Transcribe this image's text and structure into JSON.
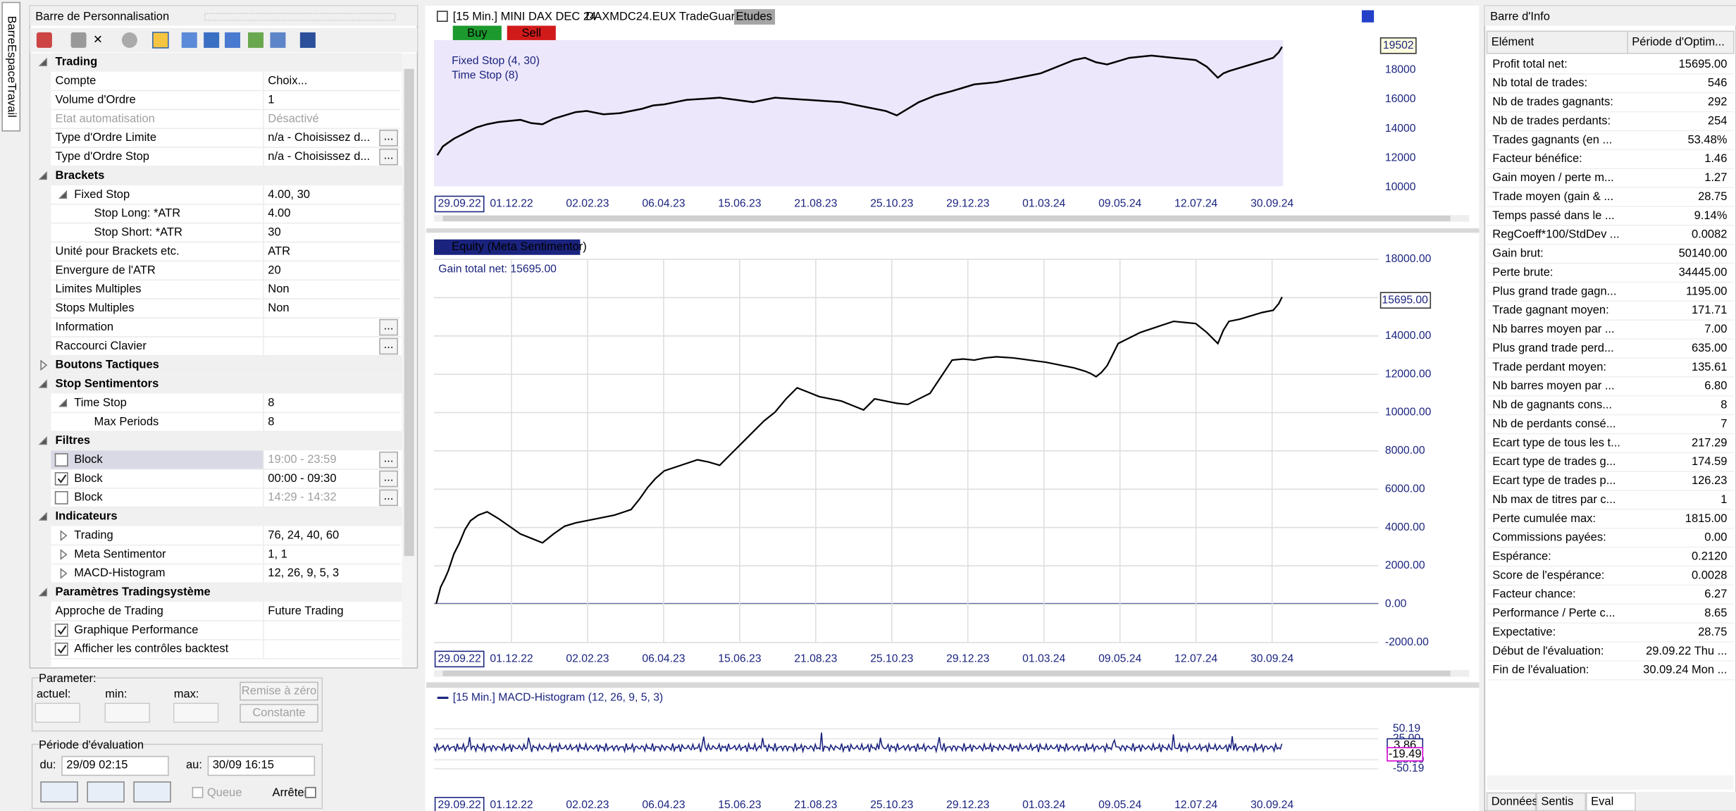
{
  "sidebar_tab": "BarreEspaceTravail",
  "left_panel": {
    "title": "Barre de Personnalisation",
    "sections": [
      {
        "name": "Trading",
        "expanded": true,
        "rows": [
          {
            "label": "Compte",
            "value": "Choix..."
          },
          {
            "label": "Volume d'Ordre",
            "value": "1"
          },
          {
            "label": "Etat automatisation",
            "value": "Désactivé",
            "disabled": true
          },
          {
            "label": "Type d'Ordre Limite",
            "value": "n/a - Choisissez d...",
            "button": "..."
          },
          {
            "label": "Type d'Ordre Stop",
            "value": "n/a - Choisissez d...",
            "button": "..."
          }
        ]
      },
      {
        "name": "Brackets",
        "expanded": true,
        "rows": [
          {
            "label": "Fixed Stop",
            "value": "4.00, 30",
            "expanded": true,
            "rows": [
              {
                "label": "Stop Long: *ATR",
                "value": "4.00"
              },
              {
                "label": "Stop Short: *ATR",
                "value": "30"
              }
            ]
          },
          {
            "label": "Unité pour Brackets etc.",
            "value": "ATR"
          },
          {
            "label": "Envergure de l'ATR",
            "value": "20"
          },
          {
            "label": "Limites Multiples",
            "value": "Non"
          },
          {
            "label": "Stops Multiples",
            "value": "Non"
          },
          {
            "label": "Information",
            "button": "..."
          },
          {
            "label": "Raccourci Clavier",
            "button": "..."
          }
        ]
      },
      {
        "name": "Boutons Tactiques",
        "expanded": false,
        "rows": []
      },
      {
        "name": "Stop Sentimentors",
        "expanded": true,
        "rows": [
          {
            "label": "Time Stop",
            "value": "8",
            "expanded": true,
            "rows": [
              {
                "label": "Max Periods",
                "value": "8"
              }
            ]
          }
        ]
      },
      {
        "name": "Filtres",
        "expanded": true,
        "rows": [
          {
            "label": "Block",
            "checked": false,
            "value": "19:00 - 23:59",
            "disabled": true,
            "selected": true,
            "button": "..."
          },
          {
            "label": "Block",
            "checked": true,
            "value": "00:00 - 09:30",
            "button": "..."
          },
          {
            "label": "Block",
            "checked": false,
            "value": "14:29 - 14:32",
            "disabled": true,
            "button": "..."
          }
        ]
      },
      {
        "name": "Indicateurs",
        "expanded": true,
        "rows": [
          {
            "label": "Trading",
            "value": "76, 24, 40, 60",
            "expanded": false
          },
          {
            "label": "Meta Sentimentor",
            "value": "1, 1",
            "expanded": false
          },
          {
            "label": "MACD-Histogram",
            "value": "12, 26, 9, 5, 3",
            "expanded": false
          }
        ]
      },
      {
        "name": "Paramètres Tradingsystème",
        "expanded": true,
        "rows": [
          {
            "label": "Approche de Trading",
            "value": "Future Trading"
          },
          {
            "label": "Graphique Performance",
            "checked": true
          },
          {
            "label": "Afficher les contrôles backtest",
            "checked": true
          }
        ]
      }
    ]
  },
  "parameter_box": {
    "title": "Parameter:",
    "current": "actuel:",
    "min": "min:",
    "max": "max:",
    "reset": "Remise à zéro",
    "constant": "Constante"
  },
  "period_box": {
    "title": "Période d'évaluation",
    "from": "du:",
    "from_value": "29/09 02:15",
    "to": "au:",
    "to_value": "30/09 16:15",
    "queue": "Queue",
    "stop": "Arrêter"
  },
  "charts": {
    "dates": [
      "29.09.22",
      "01.12.22",
      "02.02.23",
      "06.04.23",
      "15.06.23",
      "21.08.23",
      "25.10.23",
      "29.12.23",
      "01.03.24",
      "09.05.24",
      "12.07.24",
      "30.09.24"
    ],
    "price": {
      "title": "[15 Min.] MINI DAX DEC 24",
      "symbol": "DAXMDC24.EUX TradeGuard",
      "studies": "Etudes",
      "buy": "Buy",
      "sell": "Sell",
      "legend": [
        "Fixed Stop  (4, 30)",
        "Time Stop  (8)"
      ],
      "yticks": [
        "18000",
        "16000",
        "14000",
        "12000",
        "10000"
      ],
      "last": "19502"
    },
    "equity": {
      "title": "Equity (Meta Sentimentor)",
      "note": "Gain total net: 15695.00",
      "yticks": [
        "18000.00",
        "16000.00",
        "14000.00",
        "12000.00",
        "10000.00",
        "8000.00",
        "6000.00",
        "4000.00",
        "2000.00",
        "0.00",
        "-2000.00"
      ],
      "last": "15695.00"
    },
    "macd": {
      "title": "[15 Min.] MACD-Histogram  (12, 26, 9, 5, 3)",
      "yticks": [
        "50.19",
        "25.00",
        "-25.00",
        "-50.19"
      ],
      "labels": [
        "3.86",
        "-19.49"
      ]
    }
  },
  "right_panel": {
    "title": "Barre d'Info",
    "columns": [
      "Elément",
      "Période d'Optim..."
    ],
    "rows": [
      {
        "label": "Profit total net:",
        "value": "15695.00"
      },
      {
        "label": "Nb total de trades:",
        "value": "546"
      },
      {
        "label": "Nb de trades gagnants:",
        "value": "292"
      },
      {
        "label": "Nb de trades perdants:",
        "value": "254"
      },
      {
        "label": "Trades gagnants (en ...",
        "value": "53.48%"
      },
      {
        "label": "Facteur bénéfice:",
        "value": "1.46"
      },
      {
        "label": "Gain moyen / perte m...",
        "value": "1.27"
      },
      {
        "label": "Trade moyen (gain & ...",
        "value": "28.75"
      },
      {
        "label": "Temps passé dans le ...",
        "value": "9.14%"
      },
      {
        "label": "RegCoeff*100/StdDev ...",
        "value": "0.0082"
      },
      {
        "label": "Gain brut:",
        "value": "50140.00"
      },
      {
        "label": "Perte brute:",
        "value": "34445.00"
      },
      {
        "label": "Plus grand trade gagn...",
        "value": "1195.00"
      },
      {
        "label": "Trade gagnant moyen:",
        "value": "171.71"
      },
      {
        "label": "Nb barres moyen par ...",
        "value": "7.00"
      },
      {
        "label": "Plus grand trade perd...",
        "value": "635.00"
      },
      {
        "label": "Trade perdant moyen:",
        "value": "135.61"
      },
      {
        "label": "Nb barres moyen par ...",
        "value": "6.80"
      },
      {
        "label": "Nb de gagnants cons...",
        "value": "8"
      },
      {
        "label": "Nb de perdants consé...",
        "value": "7"
      },
      {
        "label": "Ecart type de tous les t...",
        "value": "217.29"
      },
      {
        "label": "Ecart type de trades g...",
        "value": "174.59"
      },
      {
        "label": "Ecart type de trades p...",
        "value": "126.23"
      },
      {
        "label": "Nb max de titres par c...",
        "value": "1"
      },
      {
        "label": "Perte cumulée max:",
        "value": "1815.00"
      },
      {
        "label": "Commissions payées:",
        "value": "0.00"
      },
      {
        "label": "Espérance:",
        "value": "0.2120"
      },
      {
        "label": "Score de l'espérance:",
        "value": "0.0028"
      },
      {
        "label": "Facteur chance:",
        "value": "6.27"
      },
      {
        "label": "Performance / Perte c...",
        "value": "8.65"
      },
      {
        "label": "Expectative:",
        "value": "28.75"
      },
      {
        "label": "Début de l'évaluation:",
        "value": "29.09.22 Thu ..."
      },
      {
        "label": "Fin de l'évaluation:",
        "value": "30.09.24 Mon ..."
      }
    ],
    "tabs": [
      "Données",
      "Sentis",
      "Eval"
    ]
  }
}
